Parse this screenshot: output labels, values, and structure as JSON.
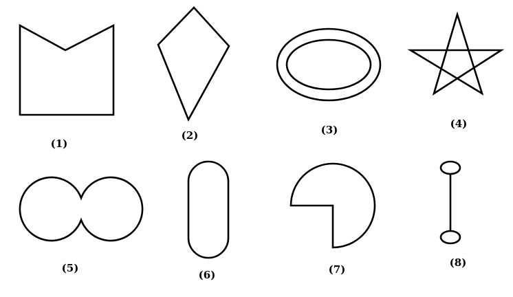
{
  "figure": {
    "stroke_color": "#000000",
    "background_color": "#ffffff",
    "shapes": [
      {
        "id": 1,
        "label": "(1)",
        "shape": "rectangle with V-notch top"
      },
      {
        "id": 2,
        "label": "(2)",
        "shape": "kite"
      },
      {
        "id": 3,
        "label": "(3)",
        "shape": "ring of two concentric ellipses"
      },
      {
        "id": 4,
        "label": "(4)",
        "shape": "five-pointed star (pentagram)"
      },
      {
        "id": 5,
        "label": "(5)",
        "shape": "two merged circles"
      },
      {
        "id": 6,
        "label": "(6)",
        "shape": "stadium (capsule)"
      },
      {
        "id": 7,
        "label": "(7)",
        "shape": "circle with quarter removed"
      },
      {
        "id": 8,
        "label": "(8)",
        "shape": "two small ellipses joined by a line"
      }
    ]
  }
}
